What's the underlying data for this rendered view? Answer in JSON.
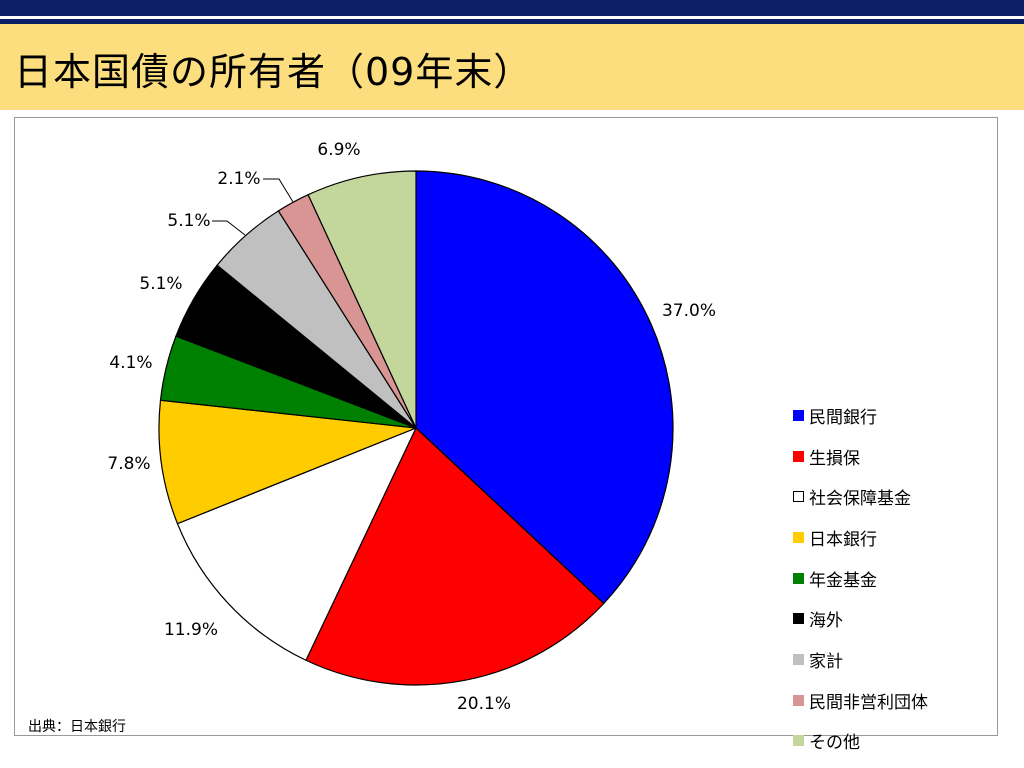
{
  "slide": {
    "title": "日本国債の所有者（09年末）",
    "source": "出典：日本銀行"
  },
  "colors": {
    "top_bar": "#0c1f66",
    "title_band": "#fcde7e",
    "frame_border": "#9a9a9a"
  },
  "chart_data": {
    "type": "pie",
    "start_angle_deg": 0,
    "direction": "clockwise",
    "legend_position": "right",
    "slices": [
      {
        "label": "民間銀行",
        "value": 37.0,
        "value_label": "37.0%",
        "color": "#0000ff"
      },
      {
        "label": "生損保",
        "value": 20.1,
        "value_label": "20.1%",
        "color": "#ff0000"
      },
      {
        "label": "社会保障基金",
        "value": 11.9,
        "value_label": "11.9%",
        "color": "#ffffff"
      },
      {
        "label": "日本銀行",
        "value": 7.8,
        "value_label": "7.8%",
        "color": "#ffcc00"
      },
      {
        "label": "年金基金",
        "value": 4.1,
        "value_label": "4.1%",
        "color": "#008000"
      },
      {
        "label": "海外",
        "value": 5.1,
        "value_label": "5.1%",
        "color": "#000000"
      },
      {
        "label": "家計",
        "value": 5.1,
        "value_label": "5.1%",
        "color": "#c0c0c0"
      },
      {
        "label": "民間非営利団体",
        "value": 2.1,
        "value_label": "2.1%",
        "color": "#d99594"
      },
      {
        "label": "その他",
        "value": 6.9,
        "value_label": "6.9%",
        "color": "#c3d69b"
      }
    ]
  }
}
